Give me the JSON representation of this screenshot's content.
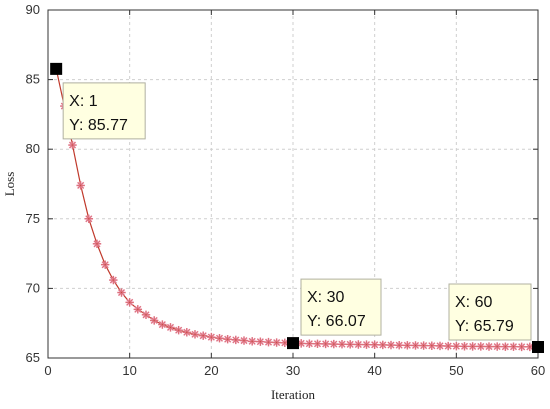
{
  "chart_data": {
    "type": "line",
    "xlabel": "Iteration",
    "ylabel": "Loss",
    "xlim": [
      0,
      60
    ],
    "ylim": [
      65,
      90
    ],
    "xticks": [
      0,
      10,
      20,
      30,
      40,
      50,
      60
    ],
    "yticks": [
      65,
      70,
      75,
      80,
      85,
      90
    ],
    "grid": true,
    "x": [
      1,
      2,
      3,
      4,
      5,
      6,
      7,
      8,
      9,
      10,
      11,
      12,
      13,
      14,
      15,
      16,
      17,
      18,
      19,
      20,
      21,
      22,
      23,
      24,
      25,
      26,
      27,
      28,
      29,
      30,
      31,
      32,
      33,
      34,
      35,
      36,
      37,
      38,
      39,
      40,
      41,
      42,
      43,
      44,
      45,
      46,
      47,
      48,
      49,
      50,
      51,
      52,
      53,
      54,
      55,
      56,
      57,
      58,
      59,
      60
    ],
    "y": [
      85.77,
      83.1,
      80.3,
      77.4,
      75.0,
      73.2,
      71.7,
      70.6,
      69.7,
      69.0,
      68.5,
      68.1,
      67.7,
      67.4,
      67.2,
      67.0,
      66.85,
      66.7,
      66.6,
      66.5,
      66.42,
      66.35,
      66.3,
      66.25,
      66.2,
      66.17,
      66.14,
      66.11,
      66.09,
      66.07,
      66.05,
      66.03,
      66.02,
      66.01,
      66.0,
      65.99,
      65.98,
      65.97,
      65.96,
      65.95,
      65.94,
      65.93,
      65.92,
      65.91,
      65.9,
      65.89,
      65.88,
      65.87,
      65.86,
      65.85,
      65.84,
      65.83,
      65.83,
      65.82,
      65.82,
      65.81,
      65.81,
      65.8,
      65.8,
      65.79
    ],
    "line_color": "#c0392b",
    "marker_color": "#e88aa0",
    "datatips": [
      {
        "x": 1,
        "y": 85.77,
        "x_text": "X: 1",
        "y_text": "Y: 85.77"
      },
      {
        "x": 30,
        "y": 66.07,
        "x_text": "X: 30",
        "y_text": "Y: 66.07"
      },
      {
        "x": 60,
        "y": 65.79,
        "x_text": "X: 60",
        "y_text": "Y: 65.79"
      }
    ]
  }
}
